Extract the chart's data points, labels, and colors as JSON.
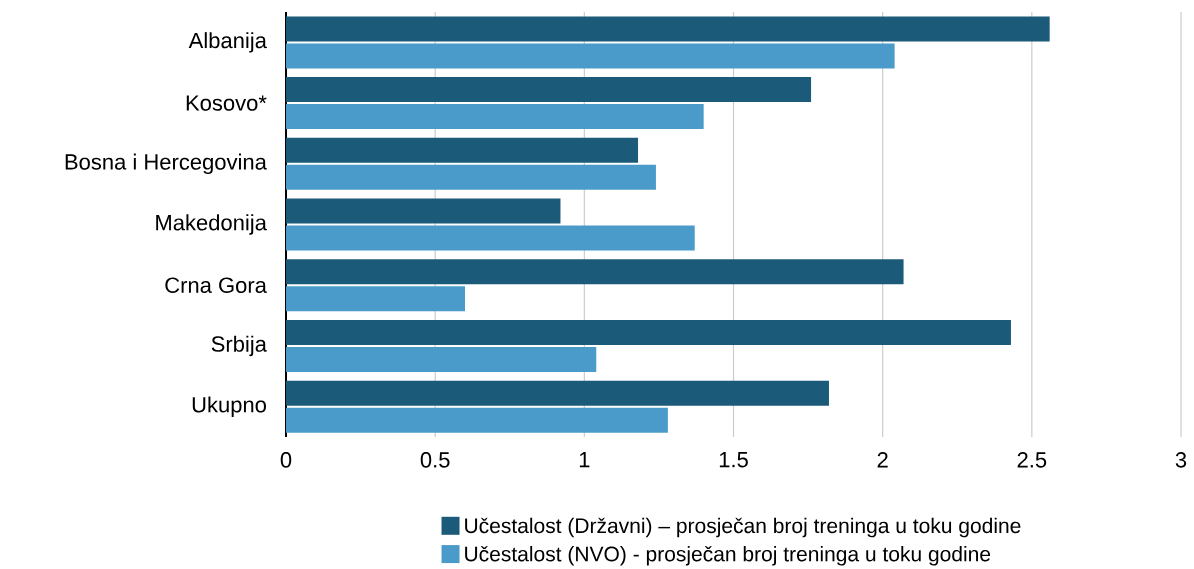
{
  "chart_data": {
    "type": "bar",
    "orientation": "horizontal",
    "categories": [
      "Albanija",
      "Kosovo*",
      "Bosna i Hercegovina",
      "Makedonija",
      "Crna Gora",
      "Srbija",
      "Ukupno"
    ],
    "series": [
      {
        "name": "Učestalost (Državni) – prosječan broj treninga u toku godine",
        "color": "#1b5a79",
        "values": [
          2.56,
          1.76,
          1.18,
          0.92,
          2.07,
          2.43,
          1.82
        ]
      },
      {
        "name": "Učestalost (NVO) - prosječan broj treninga u toku godine",
        "color": "#4a9bc9",
        "values": [
          2.04,
          1.4,
          1.24,
          1.37,
          0.6,
          1.04,
          1.28
        ]
      }
    ],
    "xlim": [
      0,
      3
    ],
    "xticks": [
      0,
      0.5,
      1,
      1.5,
      2,
      2.5,
      3
    ],
    "grid": "x",
    "legend": "bottom"
  }
}
